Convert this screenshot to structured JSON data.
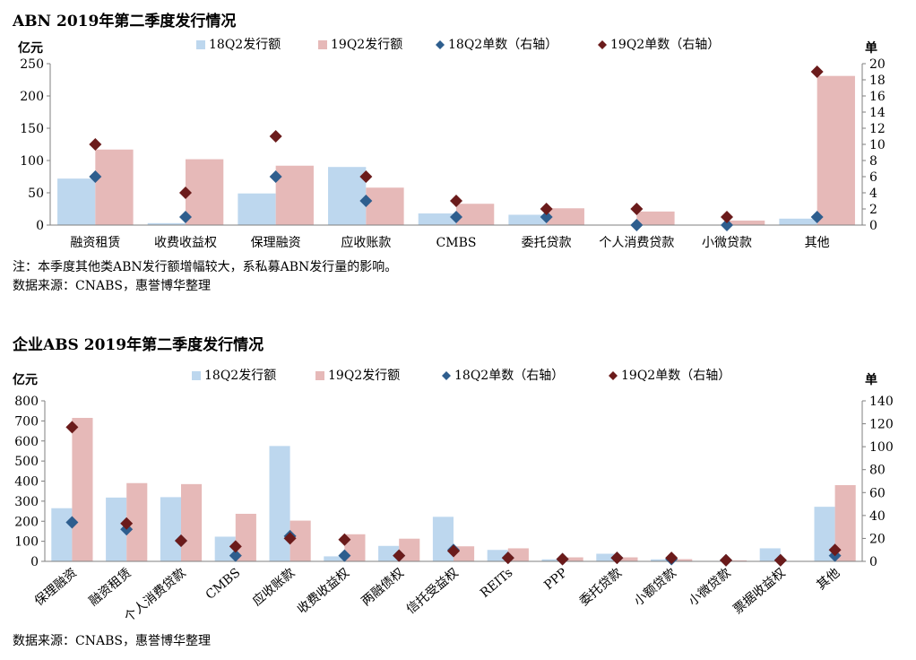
{
  "charts": [
    {
      "title": "ABN 2019年第二季度发行情况",
      "notes": [
        "注：本季度其他类ABN发行额增幅较大，系私募ABN发行量的影响。",
        "数据来源：CNABS，惠誉博华整理"
      ]
    },
    {
      "title": "企业ABS 2019年第二季度发行情况",
      "notes": [
        "数据来源：CNABS，惠誉博华整理"
      ]
    }
  ],
  "colors": {
    "bar18": "#bdd7ee",
    "bar19": "#e6b9b8",
    "dot18": "#2e5e8e",
    "dot19": "#6b1b1b"
  },
  "chart_data": [
    {
      "type": "bar",
      "title": "ABN 2019年第二季度发行情况",
      "ylabel": "亿元",
      "y2label": "单",
      "ylim": [
        0,
        250
      ],
      "yticks": [
        0,
        50,
        100,
        150,
        200,
        250
      ],
      "y2lim": [
        0,
        20
      ],
      "y2ticks": [
        0,
        2,
        4,
        6,
        8,
        10,
        12,
        14,
        16,
        18,
        20
      ],
      "legend_position": "top",
      "categories": [
        "融资租赁",
        "收费收益权",
        "保理融资",
        "应收账款",
        "CMBS",
        "委托贷款",
        "个人消费贷款",
        "小微贷款",
        "其他"
      ],
      "series": [
        {
          "name": "18Q2发行额",
          "axis": "left",
          "kind": "bar",
          "values": [
            72,
            3,
            49,
            90,
            18,
            16,
            0,
            0,
            10
          ]
        },
        {
          "name": "19Q2发行额",
          "axis": "left",
          "kind": "bar",
          "values": [
            117,
            102,
            92,
            58,
            33,
            26,
            21,
            7,
            231
          ]
        },
        {
          "name": "18Q2单数（右轴）",
          "axis": "right",
          "kind": "marker",
          "values": [
            6,
            1,
            6,
            3,
            1,
            1,
            0,
            0,
            1
          ]
        },
        {
          "name": "19Q2单数（右轴）",
          "axis": "right",
          "kind": "marker",
          "values": [
            10,
            4,
            11,
            6,
            3,
            2,
            2,
            1,
            19
          ]
        }
      ]
    },
    {
      "type": "bar",
      "title": "企业ABS 2019年第二季度发行情况",
      "ylabel": "亿元",
      "y2label": "单",
      "ylim": [
        0,
        800
      ],
      "yticks": [
        0,
        100,
        200,
        300,
        400,
        500,
        600,
        700,
        800
      ],
      "y2lim": [
        0,
        140
      ],
      "y2ticks": [
        0,
        20,
        40,
        60,
        80,
        100,
        120,
        140
      ],
      "legend_position": "top",
      "categories": [
        "保理融资",
        "融资租赁",
        "个人消费贷款",
        "CMBS",
        "应收账款",
        "收费收益权",
        "两融债权",
        "信托受益权",
        "REITs",
        "PPP",
        "委托贷款",
        "小额贷款",
        "小微贷款",
        "票据收益权",
        "其他"
      ],
      "series": [
        {
          "name": "18Q2发行额",
          "axis": "left",
          "kind": "bar",
          "values": [
            265,
            318,
            320,
            123,
            575,
            25,
            77,
            222,
            57,
            10,
            38,
            10,
            0,
            65,
            272
          ]
        },
        {
          "name": "19Q2发行额",
          "axis": "left",
          "kind": "bar",
          "values": [
            715,
            390,
            385,
            237,
            203,
            135,
            113,
            75,
            65,
            20,
            20,
            11,
            5,
            0,
            380
          ]
        },
        {
          "name": "18Q2单数（右轴）",
          "axis": "right",
          "kind": "marker",
          "values": [
            34,
            28,
            18,
            5,
            22,
            5,
            5,
            10,
            3,
            2,
            3,
            2,
            1,
            1,
            5
          ]
        },
        {
          "name": "19Q2单数（右轴）",
          "axis": "right",
          "kind": "marker",
          "values": [
            117,
            33,
            18,
            13,
            20,
            19,
            5,
            9,
            3,
            2,
            3,
            3,
            1,
            1,
            10
          ]
        }
      ]
    }
  ]
}
